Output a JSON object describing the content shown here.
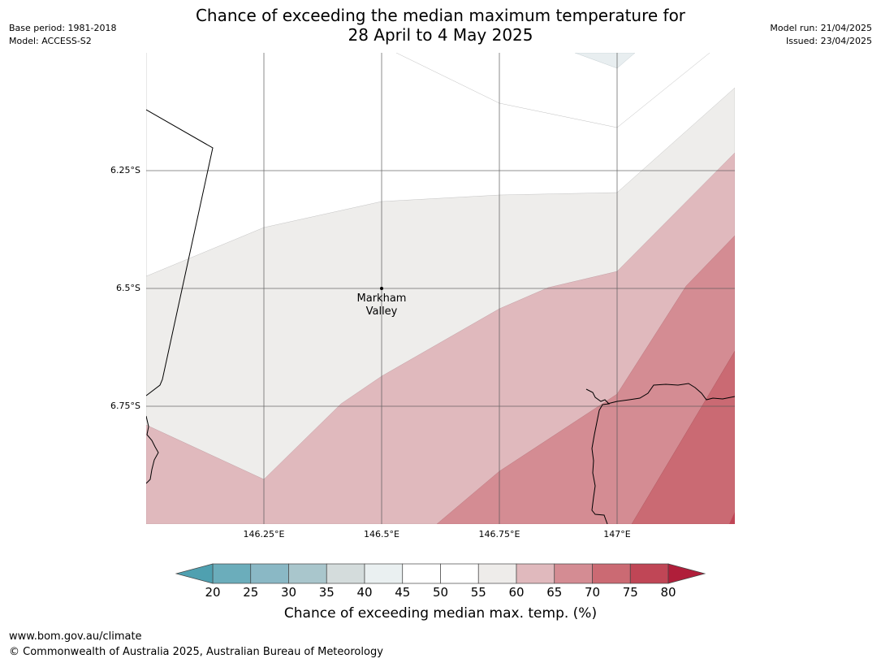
{
  "header": {
    "title_line1": "Chance of exceeding the median maximum temperature for",
    "title_line2": "28 April to 4 May 2025",
    "base_period": "Base period: 1981-2018",
    "model": "Model: ACCESS-S2",
    "model_run": "Model run: 21/04/2025",
    "issued": "Issued: 23/04/2025"
  },
  "map": {
    "lat_labels": [
      "6.25°S",
      "6.5°S",
      "6.75°S"
    ],
    "lon_labels": [
      "146.25°E",
      "146.5°E",
      "146.75°E",
      "147°E"
    ],
    "place": {
      "line1": "Markham",
      "line2": "Valley"
    }
  },
  "colorbar": {
    "ticks": [
      "20",
      "25",
      "30",
      "35",
      "40",
      "45",
      "50",
      "55",
      "60",
      "65",
      "70",
      "75",
      "80"
    ],
    "colors": [
      "#6badbb",
      "#8ab8c5",
      "#a9c6cc",
      "#d4dcdc",
      "#eaf0f1",
      "#ffffff",
      "#ffffff",
      "#eeecea",
      "#e0b9bd",
      "#d48c93",
      "#cb6a73",
      "#c04656"
    ],
    "under_color": "#4fa0b0",
    "over_color": "#b01e3a",
    "label": "Chance of exceeding median max. temp. (%)"
  },
  "footer": {
    "url": "www.bom.gov.au/climate",
    "copyright": "© Commonwealth of Australia 2025, Australian Bureau of Meteorology"
  }
}
